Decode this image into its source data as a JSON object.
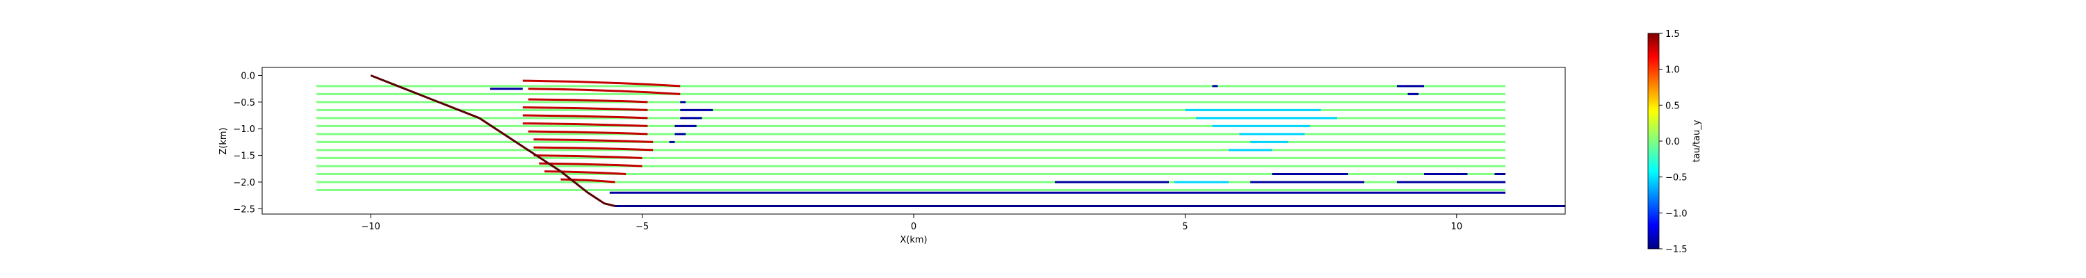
{
  "chart_data": {
    "type": "line",
    "title": "",
    "xlabel": "X(km)",
    "ylabel": "Z(km)",
    "xlim": [
      -12.0,
      12.0
    ],
    "ylim": [
      -2.6,
      0.15
    ],
    "xticks": [
      -10,
      -5,
      0,
      5,
      10
    ],
    "xtick_labels": [
      "−10",
      "−5",
      "0",
      "5",
      "10"
    ],
    "yticks": [
      0.0,
      -0.5,
      -1.0,
      -1.5,
      -2.0,
      -2.5
    ],
    "ytick_labels": [
      "0.0",
      "−0.5",
      "−1.0",
      "−1.5",
      "−2.0",
      "−2.5"
    ],
    "grid": false,
    "fault_trace": {
      "name": "fault",
      "color": "#5a0000",
      "x": [
        -10.0,
        -8.0,
        -6.5,
        -6.0,
        -5.7,
        -5.5
      ],
      "y": [
        0.0,
        -0.8,
        -1.8,
        -2.2,
        -2.4,
        -2.45
      ]
    },
    "detachment": {
      "name": "detachment",
      "color": "#00008b",
      "x": [
        -5.5,
        12.0
      ],
      "y": [
        -2.45,
        -2.45
      ]
    },
    "line_levels": [
      -0.2,
      -0.35,
      -0.5,
      -0.65,
      -0.8,
      -0.95,
      -1.1,
      -1.25,
      -1.4,
      -1.55,
      -1.7,
      -1.85,
      -2.0,
      -2.15
    ],
    "background_segments": {
      "tau_ratio": 0.0,
      "x_start": -11.0,
      "x_end": 10.9
    },
    "segments": [
      {
        "x1": -7.2,
        "x2": -4.3,
        "y1": -0.1,
        "y2": -0.2,
        "tau": 1.3
      },
      {
        "x1": -7.1,
        "x2": -4.3,
        "y1": -0.25,
        "y2": -0.35,
        "tau": 1.3
      },
      {
        "x1": -7.1,
        "x2": -4.9,
        "y1": -0.45,
        "y2": -0.5,
        "tau": 1.3
      },
      {
        "x1": -7.2,
        "x2": -4.9,
        "y1": -0.6,
        "y2": -0.65,
        "tau": 1.3
      },
      {
        "x1": -7.2,
        "x2": -4.9,
        "y1": -0.75,
        "y2": -0.8,
        "tau": 1.3
      },
      {
        "x1": -7.2,
        "x2": -4.9,
        "y1": -0.9,
        "y2": -0.95,
        "tau": 1.3
      },
      {
        "x1": -7.1,
        "x2": -4.9,
        "y1": -1.05,
        "y2": -1.1,
        "tau": 1.3
      },
      {
        "x1": -7.0,
        "x2": -4.8,
        "y1": -1.2,
        "y2": -1.25,
        "tau": 1.3
      },
      {
        "x1": -7.0,
        "x2": -4.8,
        "y1": -1.35,
        "y2": -1.4,
        "tau": 1.3
      },
      {
        "x1": -7.0,
        "x2": -5.0,
        "y1": -1.5,
        "y2": -1.55,
        "tau": 1.3
      },
      {
        "x1": -6.9,
        "x2": -5.0,
        "y1": -1.65,
        "y2": -1.7,
        "tau": 1.3
      },
      {
        "x1": -6.8,
        "x2": -5.3,
        "y1": -1.8,
        "y2": -1.85,
        "tau": 1.3
      },
      {
        "x1": -6.5,
        "x2": -5.5,
        "y1": -1.95,
        "y2": -2.0,
        "tau": 1.3
      },
      {
        "x1": -7.8,
        "x2": -7.2,
        "y1": -0.25,
        "y2": -0.25,
        "tau": -1.4
      },
      {
        "x1": -4.3,
        "x2": -4.2,
        "y1": -0.5,
        "y2": -0.5,
        "tau": -1.4
      },
      {
        "x1": -4.3,
        "x2": -3.7,
        "y1": -0.65,
        "y2": -0.65,
        "tau": -1.4
      },
      {
        "x1": -4.3,
        "x2": -3.9,
        "y1": -0.8,
        "y2": -0.8,
        "tau": -1.4
      },
      {
        "x1": -4.4,
        "x2": -4.0,
        "y1": -0.95,
        "y2": -0.95,
        "tau": -1.4
      },
      {
        "x1": -4.4,
        "x2": -4.2,
        "y1": -1.1,
        "y2": -1.1,
        "tau": -1.4
      },
      {
        "x1": -4.5,
        "x2": -4.4,
        "y1": -1.25,
        "y2": -1.25,
        "tau": -1.4
      },
      {
        "x1": 5.5,
        "x2": 5.6,
        "y1": -0.2,
        "y2": -0.2,
        "tau": -1.4
      },
      {
        "x1": 8.9,
        "x2": 9.4,
        "y1": -0.2,
        "y2": -0.2,
        "tau": -1.4
      },
      {
        "x1": 9.1,
        "x2": 9.3,
        "y1": -0.35,
        "y2": -0.35,
        "tau": -1.4
      },
      {
        "x1": 6.6,
        "x2": 8.0,
        "y1": -1.85,
        "y2": -1.85,
        "tau": -1.4
      },
      {
        "x1": 9.4,
        "x2": 10.2,
        "y1": -1.85,
        "y2": -1.85,
        "tau": -1.4
      },
      {
        "x1": 10.7,
        "x2": 10.9,
        "y1": -1.85,
        "y2": -1.85,
        "tau": -1.4
      },
      {
        "x1": 2.6,
        "x2": 4.7,
        "y1": -2.0,
        "y2": -2.0,
        "tau": -1.4
      },
      {
        "x1": 6.2,
        "x2": 8.3,
        "y1": -2.0,
        "y2": -2.0,
        "tau": -1.4
      },
      {
        "x1": 8.9,
        "x2": 10.9,
        "y1": -2.0,
        "y2": -2.0,
        "tau": -1.4
      },
      {
        "x1": -5.6,
        "x2": 10.9,
        "y1": -2.2,
        "y2": -2.2,
        "tau": -1.4
      },
      {
        "x1": 5.0,
        "x2": 7.5,
        "y1": -0.65,
        "y2": -0.65,
        "tau": -0.5
      },
      {
        "x1": 5.2,
        "x2": 7.8,
        "y1": -0.8,
        "y2": -0.8,
        "tau": -0.5
      },
      {
        "x1": 5.5,
        "x2": 7.3,
        "y1": -0.95,
        "y2": -0.95,
        "tau": -0.5
      },
      {
        "x1": 6.0,
        "x2": 7.2,
        "y1": -1.1,
        "y2": -1.1,
        "tau": -0.5
      },
      {
        "x1": 6.2,
        "x2": 6.9,
        "y1": -1.25,
        "y2": -1.25,
        "tau": -0.5
      },
      {
        "x1": 5.8,
        "x2": 6.6,
        "y1": -1.4,
        "y2": -1.4,
        "tau": -0.5
      },
      {
        "x1": 4.8,
        "x2": 5.8,
        "y1": -2.0,
        "y2": -2.0,
        "tau": -0.5
      }
    ],
    "colorbar": {
      "label": "tau/tau_y",
      "colormap": "jet",
      "min": -1.5,
      "max": 1.5,
      "ticks": [
        1.5,
        1.0,
        0.5,
        0.0,
        -0.5,
        -1.0,
        -1.5
      ],
      "tick_labels": [
        "1.5",
        "1.0",
        "0.5",
        "0.0",
        "−0.5",
        "−1.0",
        "−1.5"
      ]
    }
  }
}
